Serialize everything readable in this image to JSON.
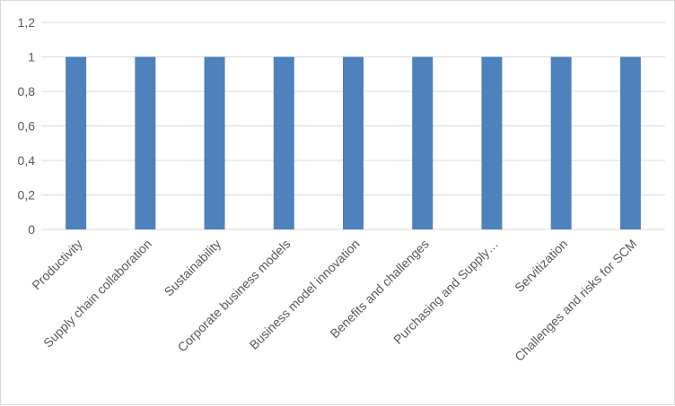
{
  "chart_data": {
    "type": "bar",
    "categories": [
      "Productivity",
      "Supply chain collaboration",
      "Sustainability",
      "Corporate business models",
      "Business model innovation",
      "Benefits and challenges",
      "Purchasing and Supply…",
      "Servitization",
      "Challenges and risks for SCM"
    ],
    "series": [
      {
        "values": [
          1,
          1,
          1,
          1,
          1,
          1,
          1,
          1,
          1
        ],
        "color": "#4f81bd"
      }
    ],
    "title": "",
    "xlabel": "",
    "ylabel": "",
    "ylim": [
      0,
      1.2
    ],
    "yticks": [
      0,
      0.2,
      0.4,
      0.6,
      0.8,
      1,
      1.2
    ],
    "ytick_labels": [
      "0",
      "0,2",
      "0,4",
      "0,6",
      "0,8",
      "1",
      "1,2"
    ],
    "grid": true,
    "legend": "none"
  },
  "colors": {
    "bar": "#4f81bd",
    "grid": "#d9d9d9",
    "text": "#595959"
  }
}
